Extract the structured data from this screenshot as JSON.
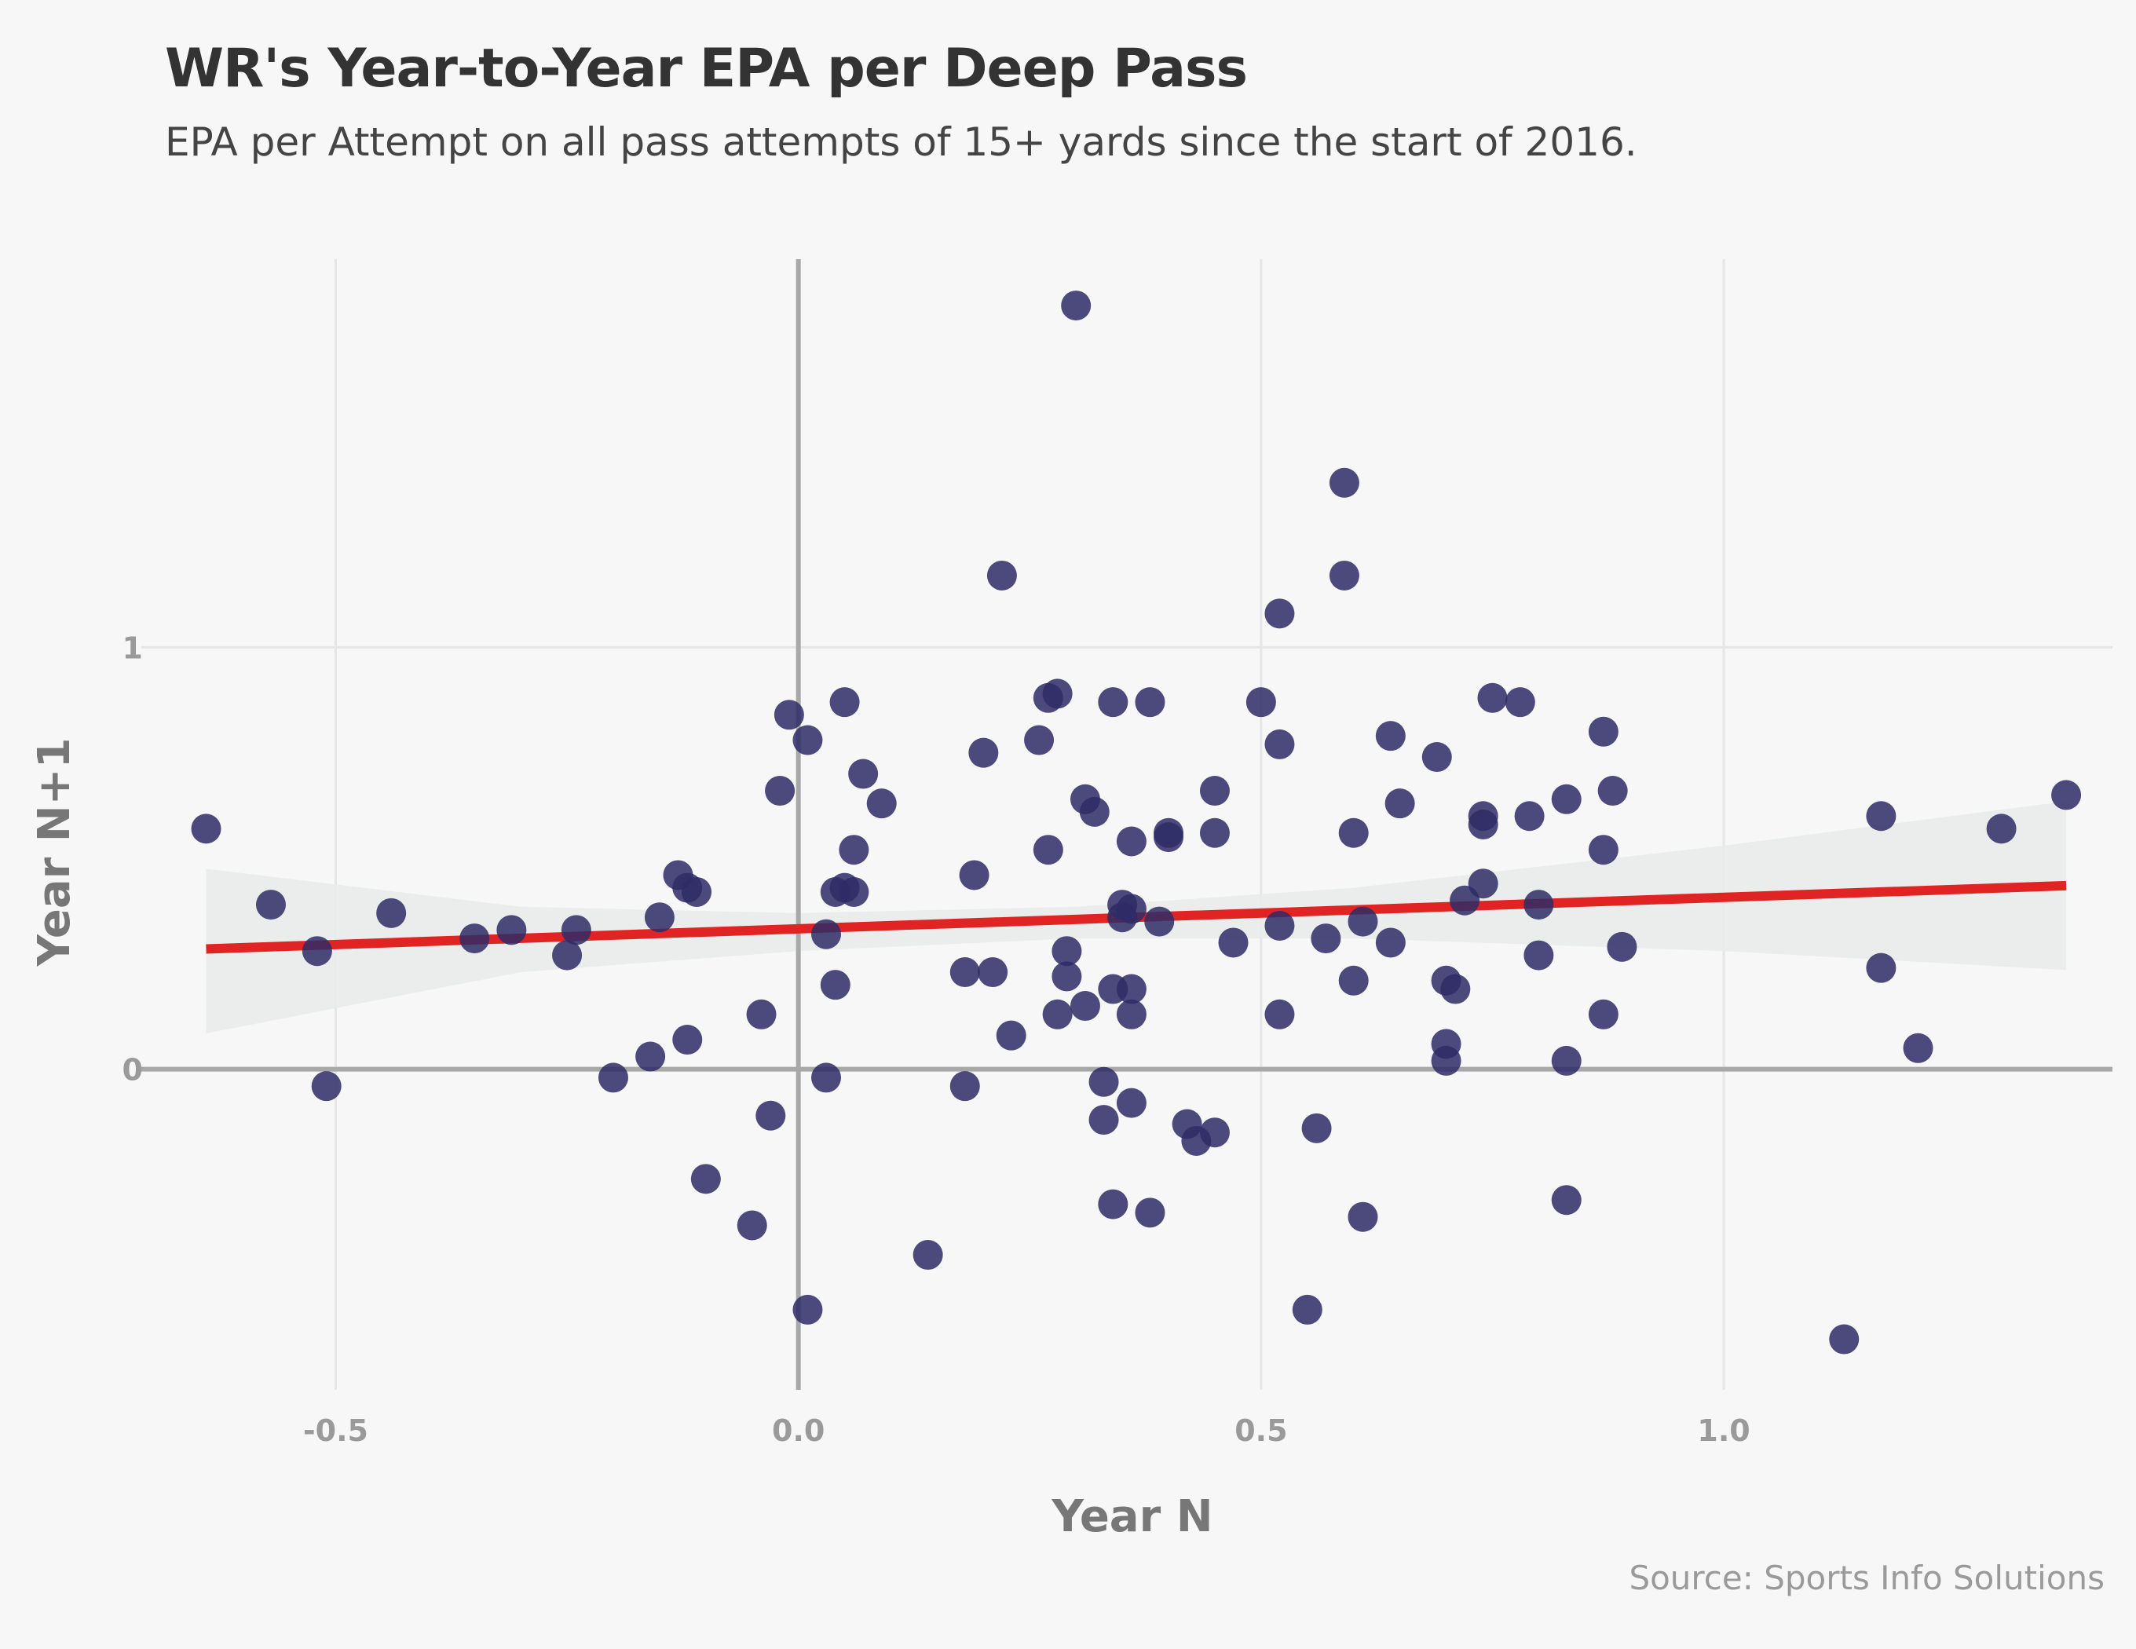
{
  "title": "WR's Year-to-Year EPA per Deep Pass",
  "subtitle": "EPA per Attempt on all pass attempts of 15+ yards since the start of 2016.",
  "caption": "Source: Sports Info Solutions",
  "chart_data": {
    "type": "scatter",
    "title": "WR's Year-to-Year EPA per Deep Pass",
    "subtitle": "EPA per Attempt on all pass attempts of 15+ yards since the start of 2016.",
    "xlabel": "Year N",
    "ylabel": "Year N+1",
    "xlim": [
      -0.71,
      1.42
    ],
    "ylim": [
      -0.76,
      1.92
    ],
    "x_ticks": [
      -0.5,
      0.0,
      0.5,
      1.0
    ],
    "x_tick_labels": [
      "-0.5",
      "0.0",
      "0.5",
      "1.0"
    ],
    "y_ticks": [
      0,
      1
    ],
    "y_tick_labels": [
      "0",
      "1"
    ],
    "grid": true,
    "colors": {
      "points": "#2e2b66",
      "trend_line": "#e02424",
      "confidence_band": "#e9ebea",
      "zero_lines": "#a8a8a8",
      "grid": "#e6e6e6"
    },
    "trend_line": {
      "x": [
        -0.64,
        1.37
      ],
      "y": [
        0.285,
        0.435
      ]
    },
    "confidence_band": {
      "x": [
        -0.64,
        -0.3,
        0.0,
        0.3,
        0.6,
        1.0,
        1.37
      ],
      "lower": [
        0.085,
        0.23,
        0.28,
        0.31,
        0.31,
        0.28,
        0.235
      ],
      "upper": [
        0.475,
        0.385,
        0.37,
        0.385,
        0.43,
        0.53,
        0.635
      ]
    },
    "points": [
      {
        "x": -0.64,
        "y": 0.57
      },
      {
        "x": -0.57,
        "y": 0.39
      },
      {
        "x": -0.52,
        "y": 0.28
      },
      {
        "x": -0.51,
        "y": -0.04
      },
      {
        "x": -0.44,
        "y": 0.37
      },
      {
        "x": -0.35,
        "y": 0.31
      },
      {
        "x": -0.31,
        "y": 0.33
      },
      {
        "x": -0.24,
        "y": 0.33
      },
      {
        "x": -0.25,
        "y": 0.27
      },
      {
        "x": -0.2,
        "y": -0.02
      },
      {
        "x": -0.16,
        "y": 0.03
      },
      {
        "x": -0.15,
        "y": 0.36
      },
      {
        "x": -0.13,
        "y": 0.46
      },
      {
        "x": -0.12,
        "y": 0.43
      },
      {
        "x": -0.11,
        "y": 0.42
      },
      {
        "x": -0.12,
        "y": 0.07
      },
      {
        "x": -0.1,
        "y": -0.26
      },
      {
        "x": -0.05,
        "y": -0.37
      },
      {
        "x": -0.04,
        "y": 0.13
      },
      {
        "x": -0.03,
        "y": -0.11
      },
      {
        "x": -0.02,
        "y": 0.66
      },
      {
        "x": -0.01,
        "y": 0.84
      },
      {
        "x": 0.01,
        "y": 0.78
      },
      {
        "x": 0.01,
        "y": -0.57
      },
      {
        "x": 0.03,
        "y": 0.32
      },
      {
        "x": 0.03,
        "y": -0.02
      },
      {
        "x": 0.04,
        "y": 0.2
      },
      {
        "x": 0.04,
        "y": 0.42
      },
      {
        "x": 0.05,
        "y": 0.43
      },
      {
        "x": 0.05,
        "y": 0.87
      },
      {
        "x": 0.06,
        "y": 0.52
      },
      {
        "x": 0.06,
        "y": 0.42
      },
      {
        "x": 0.07,
        "y": 0.7
      },
      {
        "x": 0.09,
        "y": 0.63
      },
      {
        "x": 0.14,
        "y": -0.44
      },
      {
        "x": 0.18,
        "y": 0.23
      },
      {
        "x": 0.18,
        "y": -0.04
      },
      {
        "x": 0.19,
        "y": 0.46
      },
      {
        "x": 0.2,
        "y": 0.75
      },
      {
        "x": 0.21,
        "y": 0.23
      },
      {
        "x": 0.22,
        "y": 1.17
      },
      {
        "x": 0.23,
        "y": 0.08
      },
      {
        "x": 0.26,
        "y": 0.78
      },
      {
        "x": 0.27,
        "y": 0.88
      },
      {
        "x": 0.28,
        "y": 0.89
      },
      {
        "x": 0.27,
        "y": 0.52
      },
      {
        "x": 0.28,
        "y": 0.13
      },
      {
        "x": 0.29,
        "y": 0.22
      },
      {
        "x": 0.29,
        "y": 0.28
      },
      {
        "x": 0.3,
        "y": 1.81
      },
      {
        "x": 0.31,
        "y": 0.64
      },
      {
        "x": 0.31,
        "y": 0.15
      },
      {
        "x": 0.32,
        "y": 0.61
      },
      {
        "x": 0.33,
        "y": -0.03
      },
      {
        "x": 0.33,
        "y": -0.12
      },
      {
        "x": 0.34,
        "y": 0.87
      },
      {
        "x": 0.34,
        "y": 0.19
      },
      {
        "x": 0.34,
        "y": -0.32
      },
      {
        "x": 0.35,
        "y": 0.39
      },
      {
        "x": 0.35,
        "y": 0.36
      },
      {
        "x": 0.36,
        "y": 0.54
      },
      {
        "x": 0.36,
        "y": 0.38
      },
      {
        "x": 0.36,
        "y": 0.19
      },
      {
        "x": 0.36,
        "y": 0.13
      },
      {
        "x": 0.36,
        "y": -0.08
      },
      {
        "x": 0.38,
        "y": 0.87
      },
      {
        "x": 0.38,
        "y": -0.34
      },
      {
        "x": 0.39,
        "y": 0.35
      },
      {
        "x": 0.4,
        "y": 0.56
      },
      {
        "x": 0.4,
        "y": 0.55
      },
      {
        "x": 0.42,
        "y": -0.13
      },
      {
        "x": 0.43,
        "y": -0.17
      },
      {
        "x": 0.45,
        "y": 0.66
      },
      {
        "x": 0.45,
        "y": 0.56
      },
      {
        "x": 0.45,
        "y": -0.15
      },
      {
        "x": 0.47,
        "y": 0.3
      },
      {
        "x": 0.5,
        "y": 0.87
      },
      {
        "x": 0.52,
        "y": 0.77
      },
      {
        "x": 0.52,
        "y": 0.34
      },
      {
        "x": 0.52,
        "y": 0.13
      },
      {
        "x": 0.52,
        "y": 1.08
      },
      {
        "x": 0.55,
        "y": -0.57
      },
      {
        "x": 0.56,
        "y": -0.14
      },
      {
        "x": 0.57,
        "y": 0.31
      },
      {
        "x": 0.59,
        "y": 1.17
      },
      {
        "x": 0.59,
        "y": 1.39
      },
      {
        "x": 0.6,
        "y": 0.56
      },
      {
        "x": 0.6,
        "y": 0.21
      },
      {
        "x": 0.61,
        "y": 0.35
      },
      {
        "x": 0.61,
        "y": -0.35
      },
      {
        "x": 0.64,
        "y": 0.3
      },
      {
        "x": 0.64,
        "y": 0.79
      },
      {
        "x": 0.65,
        "y": 0.63
      },
      {
        "x": 0.69,
        "y": 0.74
      },
      {
        "x": 0.7,
        "y": 0.21
      },
      {
        "x": 0.7,
        "y": 0.06
      },
      {
        "x": 0.7,
        "y": 0.02
      },
      {
        "x": 0.71,
        "y": 0.19
      },
      {
        "x": 0.72,
        "y": 0.4
      },
      {
        "x": 0.74,
        "y": 0.44
      },
      {
        "x": 0.74,
        "y": 0.6
      },
      {
        "x": 0.74,
        "y": 0.58
      },
      {
        "x": 0.75,
        "y": 0.88
      },
      {
        "x": 0.78,
        "y": 0.87
      },
      {
        "x": 0.79,
        "y": 0.6
      },
      {
        "x": 0.8,
        "y": 0.39
      },
      {
        "x": 0.8,
        "y": 0.27
      },
      {
        "x": 0.83,
        "y": 0.64
      },
      {
        "x": 0.83,
        "y": 0.02
      },
      {
        "x": 0.83,
        "y": -0.31
      },
      {
        "x": 0.87,
        "y": 0.8
      },
      {
        "x": 0.87,
        "y": 0.52
      },
      {
        "x": 0.87,
        "y": 0.13
      },
      {
        "x": 0.88,
        "y": 0.66
      },
      {
        "x": 0.89,
        "y": 0.29
      },
      {
        "x": 1.13,
        "y": -0.64
      },
      {
        "x": 1.17,
        "y": 0.6
      },
      {
        "x": 1.17,
        "y": 0.24
      },
      {
        "x": 1.21,
        "y": 0.05
      },
      {
        "x": 1.3,
        "y": 0.57
      },
      {
        "x": 1.37,
        "y": 0.65
      }
    ]
  }
}
